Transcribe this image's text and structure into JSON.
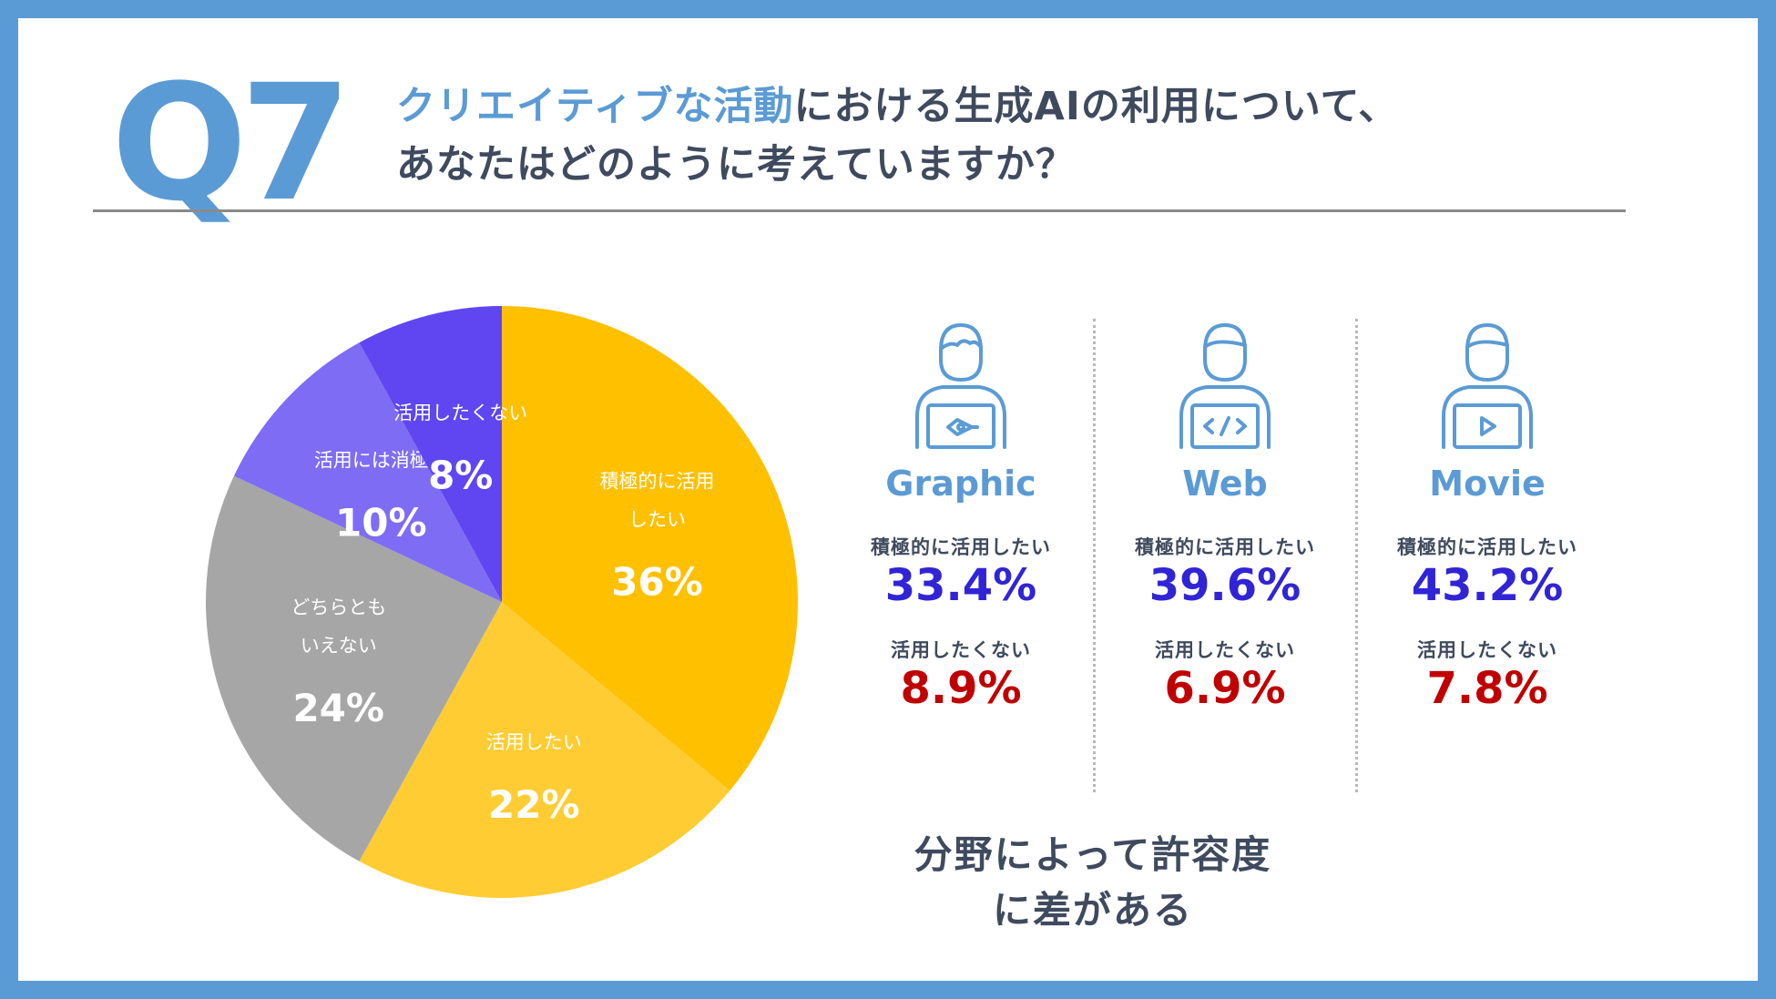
{
  "question": {
    "number": "Q7",
    "title_line1_highlight": "クリエイティブな活動",
    "title_line1_rest": "における生成AIの利用について、",
    "title_line2": "あなたはどのように考えていますか？"
  },
  "chart_data": {
    "type": "pie",
    "title": "",
    "start_angle": "12 o'clock, clockwise",
    "slices": [
      {
        "label_lines": [
          "積極的に活用",
          "したい"
        ],
        "label": "積極的に活用したい",
        "value": 36,
        "value_label": "36%",
        "color": "#ffc000"
      },
      {
        "label_lines": [
          "活用したい"
        ],
        "label": "活用したい",
        "value": 22,
        "value_label": "22%",
        "color": "#ffcd33"
      },
      {
        "label_lines": [
          "どちらとも",
          "いえない"
        ],
        "label": "どちらともいえない",
        "value": 24,
        "value_label": "24%",
        "color": "#a6a6a6"
      },
      {
        "label_lines": [
          "活用には消極的"
        ],
        "label": "活用には消極的",
        "value": 10,
        "value_label": "10%",
        "color": "#7f6cf5"
      },
      {
        "label_lines": [
          "活用したくない"
        ],
        "label": "活用したくない",
        "value": 8,
        "value_label": "8%",
        "color": "#6046f0"
      }
    ]
  },
  "fields": [
    {
      "icon": "graphic-designer-icon",
      "name": "Graphic",
      "positive_label": "積極的に活用したい",
      "positive_value": "33.4%",
      "negative_label": "活用したくない",
      "negative_value": "8.9%"
    },
    {
      "icon": "web-developer-icon",
      "name": "Web",
      "positive_label": "積極的に活用したい",
      "positive_value": "39.6%",
      "negative_label": "活用したくない",
      "negative_value": "6.9%"
    },
    {
      "icon": "movie-creator-icon",
      "name": "Movie",
      "positive_label": "積極的に活用したい",
      "positive_value": "43.2%",
      "negative_label": "活用したくない",
      "negative_value": "7.8%"
    }
  ],
  "conclusion": "分野によって許容度に差がある",
  "colors": {
    "accent_blue": "#5b9bd5",
    "text_dark": "#3f4a5e",
    "positive": "#3024d6",
    "negative": "#c00000"
  }
}
